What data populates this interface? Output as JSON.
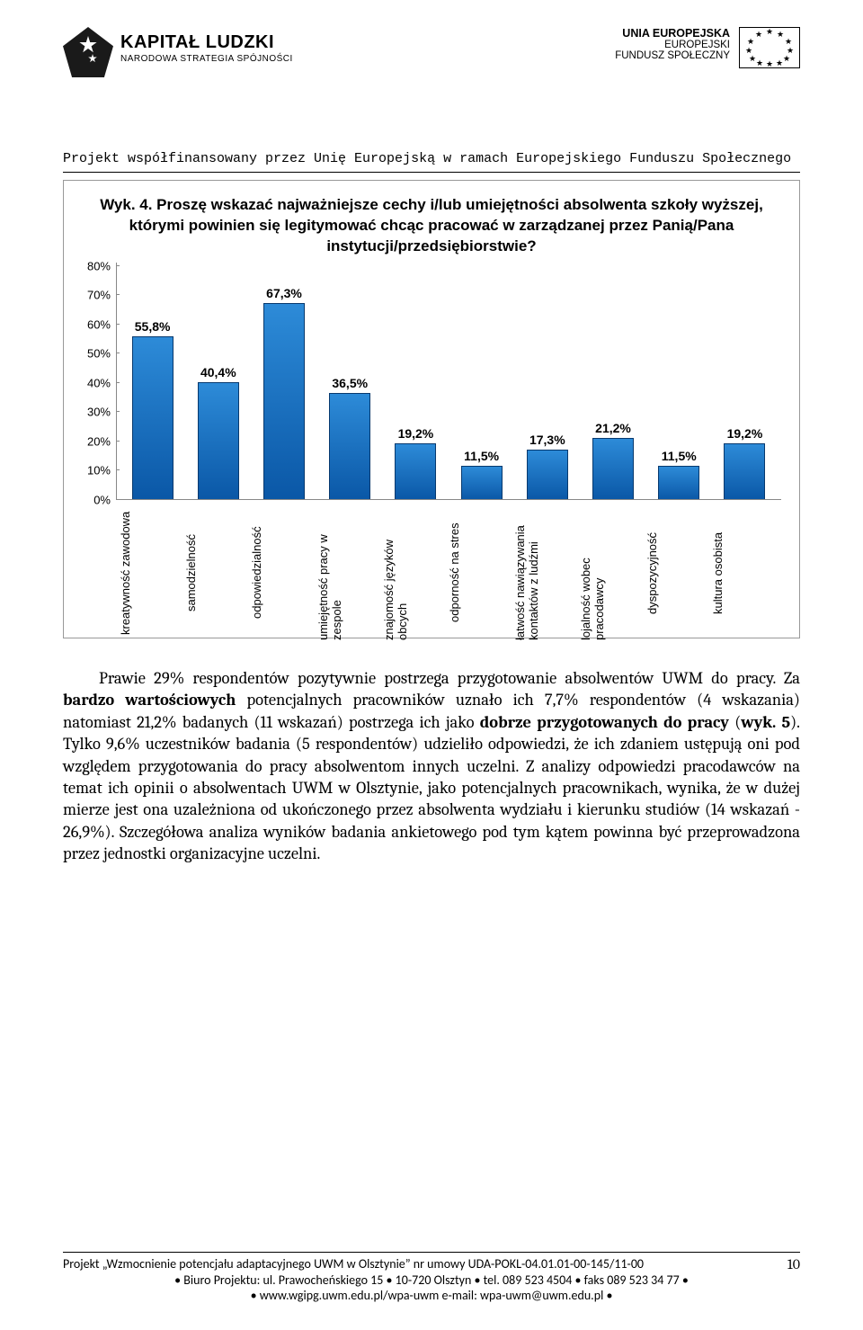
{
  "header": {
    "left": {
      "title": "KAPITAŁ LUDZKI",
      "subtitle": "NARODOWA STRATEGIA SPÓJNOŚCI"
    },
    "right": {
      "line1": "UNIA EUROPEJSKA",
      "line2": "EUROPEJSKI",
      "line3": "FUNDUSZ SPOŁECZNY"
    }
  },
  "subheader": "Projekt współfinansowany przez Unię Europejską w ramach Europejskiego Funduszu Społecznego",
  "chart": {
    "title": "Wyk. 4. Proszę wskazać najważniejsze cechy i/lub umiejętności absolwenta szkoły wyższej, którymi powinien się legitymować chcąc pracować w zarządzanej przez Panią/Pana instytucji/przedsiębiorstwie?",
    "type": "bar",
    "ylim": [
      0,
      80
    ],
    "ytick_step": 10,
    "ytick_suffix": "%",
    "bar_color_top": "#2d8bd8",
    "bar_color_bottom": "#0a57a6",
    "bar_border": "#07396e",
    "grid_color": "#888888",
    "label_fontsize": 14,
    "title_fontsize": 17,
    "axis_fontsize": 13,
    "categories": [
      "kreatywność zawodowa",
      "samodzielność",
      "odpowiedzialność",
      "umiejętność pracy w zespole",
      "znajomość języków obcych",
      "odporność na stres",
      "łatwość nawiązywania kontaktów z ludźmi",
      "lojalność wobec pracodawcy",
      "dyspozycyjność",
      "kultura osobista"
    ],
    "values": [
      55.8,
      40.4,
      67.3,
      36.5,
      19.2,
      11.5,
      17.3,
      21.2,
      11.5,
      19.2
    ],
    "value_labels": [
      "55,8%",
      "40,4%",
      "67,3%",
      "36,5%",
      "19,2%",
      "11,5%",
      "17,3%",
      "21,2%",
      "11,5%",
      "19,2%"
    ]
  },
  "body": {
    "text": "Prawie 29% respondentów pozytywnie postrzega przygotowanie absolwentów UWM do pracy. Za <b>bardzo wartościowych</b> potencjalnych pracowników uznało ich 7,7% respondentów (4 wskazania) natomiast 21,2% badanych (11 wskazań) postrzega ich jako <b>dobrze przygotowanych do pracy</b> (<b>wyk. 5</b>). Tylko 9,6% uczestników badania (5 respondentów) udzieliło odpowiedzi, że ich zdaniem ustępują oni pod względem przygotowania do pracy absolwentom innych uczelni. Z analizy odpowiedzi pracodawców na temat ich opinii o absolwentach UWM w Olsztynie, jako potencjalnych pracownikach, wynika, że w dużej mierze jest ona uzależniona od ukończonego przez absolwenta wydziału i kierunku studiów (14 wskazań - 26,9%). Szczegółowa analiza wyników badania ankietowego pod tym kątem  powinna być przeprowadzona przez jednostki organizacyjne uczelni."
  },
  "footer": {
    "line1": "Projekt „Wzmocnienie potencjału adaptacyjnego UWM w Olsztynie” nr umowy UDA-POKL-04.01.01-00-145/11-00",
    "page_num": "10",
    "line2": "• Biuro Projektu: ul. Prawocheńskiego 15 • 10-720 Olsztyn • tel. 089 523 4504 • faks 089 523 34 77 •",
    "line3": "• www.wgipg.uwm.edu.pl/wpa-uwm e-mail: wpa-uwm@uwm.edu.pl •"
  }
}
